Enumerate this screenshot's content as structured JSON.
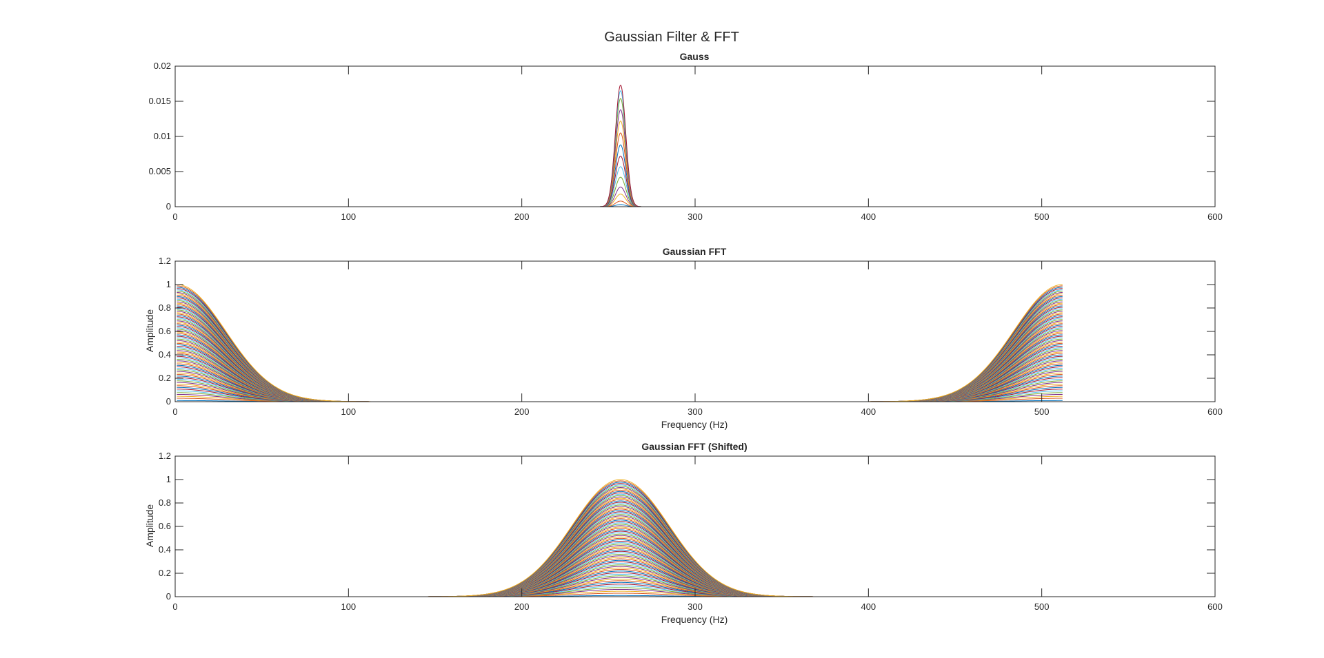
{
  "figure": {
    "suptitle": "Gaussian Filter & FFT"
  },
  "palette": [
    "#0072BD",
    "#D95319",
    "#EDB120",
    "#7E2F8E",
    "#77AC30",
    "#4DBEEE",
    "#A2142F"
  ],
  "chart_data": [
    {
      "type": "line",
      "title": "Gauss",
      "xlabel": "",
      "ylabel": "",
      "xlim": [
        0,
        600
      ],
      "ylim": [
        0,
        0.02
      ],
      "xticks": [
        0,
        100,
        200,
        300,
        400,
        500,
        600
      ],
      "xtick_labels": [
        "0",
        "100",
        "200",
        "300",
        "400",
        "500",
        "600"
      ],
      "yticks": [
        0,
        0.005,
        0.01,
        0.015,
        0.02
      ],
      "ytick_labels": [
        "0",
        "0.005",
        "0.01",
        "0.015",
        "0.02"
      ],
      "grid": false,
      "curve_shape": "gaussian",
      "x_range": [
        1,
        512
      ],
      "center": 257,
      "sigma": 3,
      "series_peaks": [
        0.0003,
        0.0008,
        0.0018,
        0.0028,
        0.0042,
        0.0057,
        0.0072,
        0.0088,
        0.0105,
        0.0122,
        0.0138,
        0.0154,
        0.0165,
        0.0173
      ]
    },
    {
      "type": "line",
      "title": "Gaussian FFT",
      "xlabel": "Frequency (Hz)",
      "ylabel": "Amplitude",
      "xlim": [
        0,
        600
      ],
      "ylim": [
        0,
        1.2
      ],
      "xticks": [
        0,
        100,
        200,
        300,
        400,
        500,
        600
      ],
      "xtick_labels": [
        "0",
        "100",
        "200",
        "300",
        "400",
        "500",
        "600"
      ],
      "yticks": [
        0,
        0.2,
        0.4,
        0.6,
        0.8,
        1,
        1.2
      ],
      "ytick_labels": [
        "0",
        "0.2",
        "0.4",
        "0.6",
        "0.8",
        "1",
        "1.2"
      ],
      "grid": false,
      "curve_shape": "gaussian-edges",
      "x_range": [
        1,
        512
      ],
      "edge_centers": [
        1,
        512
      ],
      "sigma": 28,
      "series_count": 80,
      "peak_range": [
        0.01,
        1.0
      ]
    },
    {
      "type": "line",
      "title": "Gaussian FFT (Shifted)",
      "xlabel": "Frequency (Hz)",
      "ylabel": "Amplitude",
      "xlim": [
        0,
        600
      ],
      "ylim": [
        0,
        1.2
      ],
      "xticks": [
        0,
        100,
        200,
        300,
        400,
        500,
        600
      ],
      "xtick_labels": [
        "0",
        "100",
        "200",
        "300",
        "400",
        "500",
        "600"
      ],
      "yticks": [
        0,
        0.2,
        0.4,
        0.6,
        0.8,
        1,
        1.2
      ],
      "ytick_labels": [
        "0",
        "0.2",
        "0.4",
        "0.6",
        "0.8",
        "1",
        "1.2"
      ],
      "grid": false,
      "curve_shape": "gaussian",
      "x_range": [
        1,
        512
      ],
      "center": 257,
      "sigma": 28,
      "series_count": 80,
      "peak_range": [
        0.01,
        1.0
      ]
    }
  ]
}
